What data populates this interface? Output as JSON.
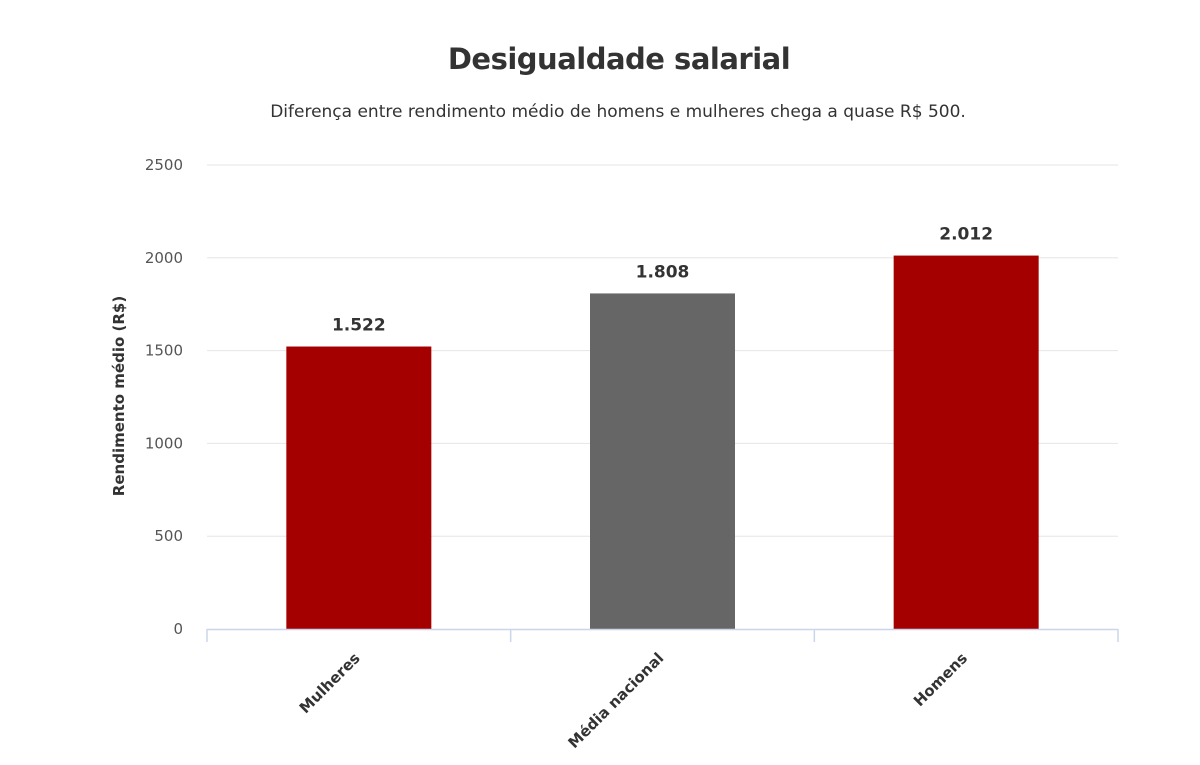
{
  "chart_data": {
    "type": "bar",
    "title": "Desigualdade salarial",
    "subtitle": "Diferença entre rendimento médio de homens e mulheres chega a quase R$ 500.",
    "ylabel": "Rendimento médio (R$)",
    "xlabel": "",
    "ylim": [
      0,
      2500
    ],
    "yticks": [
      0,
      500,
      1000,
      1500,
      2000,
      2500
    ],
    "categories": [
      "Mulheres",
      "Média nacional",
      "Homens"
    ],
    "values": [
      1522,
      1808,
      2012
    ],
    "data_labels": [
      "1.522",
      "1.808",
      "2.012"
    ],
    "colors": [
      "#a50000",
      "#666666",
      "#a50000"
    ],
    "grid": true,
    "legend": "none"
  }
}
